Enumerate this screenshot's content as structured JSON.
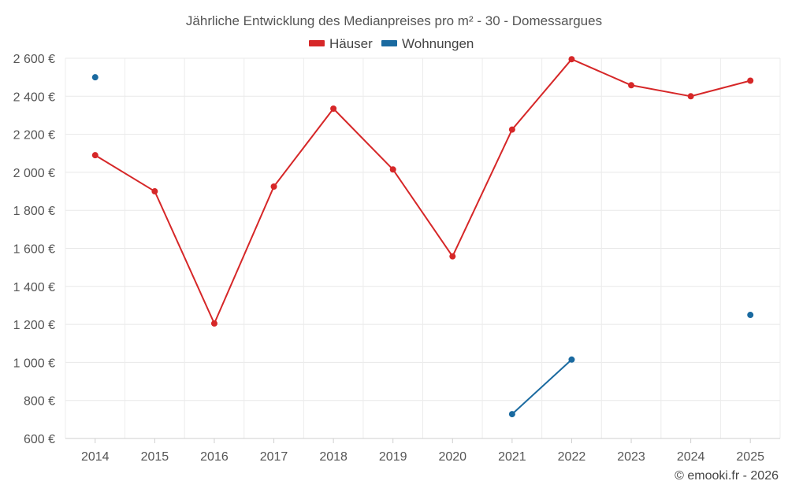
{
  "chart_data": {
    "type": "line",
    "title": "Jährliche Entwicklung des Medianpreises pro m² - 30 - Domessargues",
    "categories": [
      "2014",
      "2015",
      "2016",
      "2017",
      "2018",
      "2019",
      "2020",
      "2021",
      "2022",
      "2023",
      "2024",
      "2025"
    ],
    "series": [
      {
        "name": "Häuser",
        "color": "#d62728",
        "values": [
          2090,
          1900,
          1205,
          1925,
          2335,
          2015,
          1558,
          2225,
          2595,
          2458,
          2400,
          2482
        ]
      },
      {
        "name": "Wohnungen",
        "color": "#1a6aa0",
        "values": [
          2500,
          null,
          null,
          null,
          null,
          null,
          null,
          728,
          1015,
          null,
          null,
          1250
        ]
      }
    ],
    "ylim": [
      600,
      2600
    ],
    "yticks": [
      600,
      800,
      1000,
      1200,
      1400,
      1600,
      1800,
      2000,
      2200,
      2400,
      2600
    ],
    "ytick_labels": [
      "600 €",
      "800 €",
      "1 000 €",
      "1 200 €",
      "1 400 €",
      "1 600 €",
      "1 800 €",
      "2 000 €",
      "2 200 €",
      "2 400 €",
      "2 600 €"
    ],
    "xlabel": "",
    "ylabel": "",
    "grid": true,
    "legend": "top-center"
  },
  "credit": "© emooki.fr - 2026"
}
